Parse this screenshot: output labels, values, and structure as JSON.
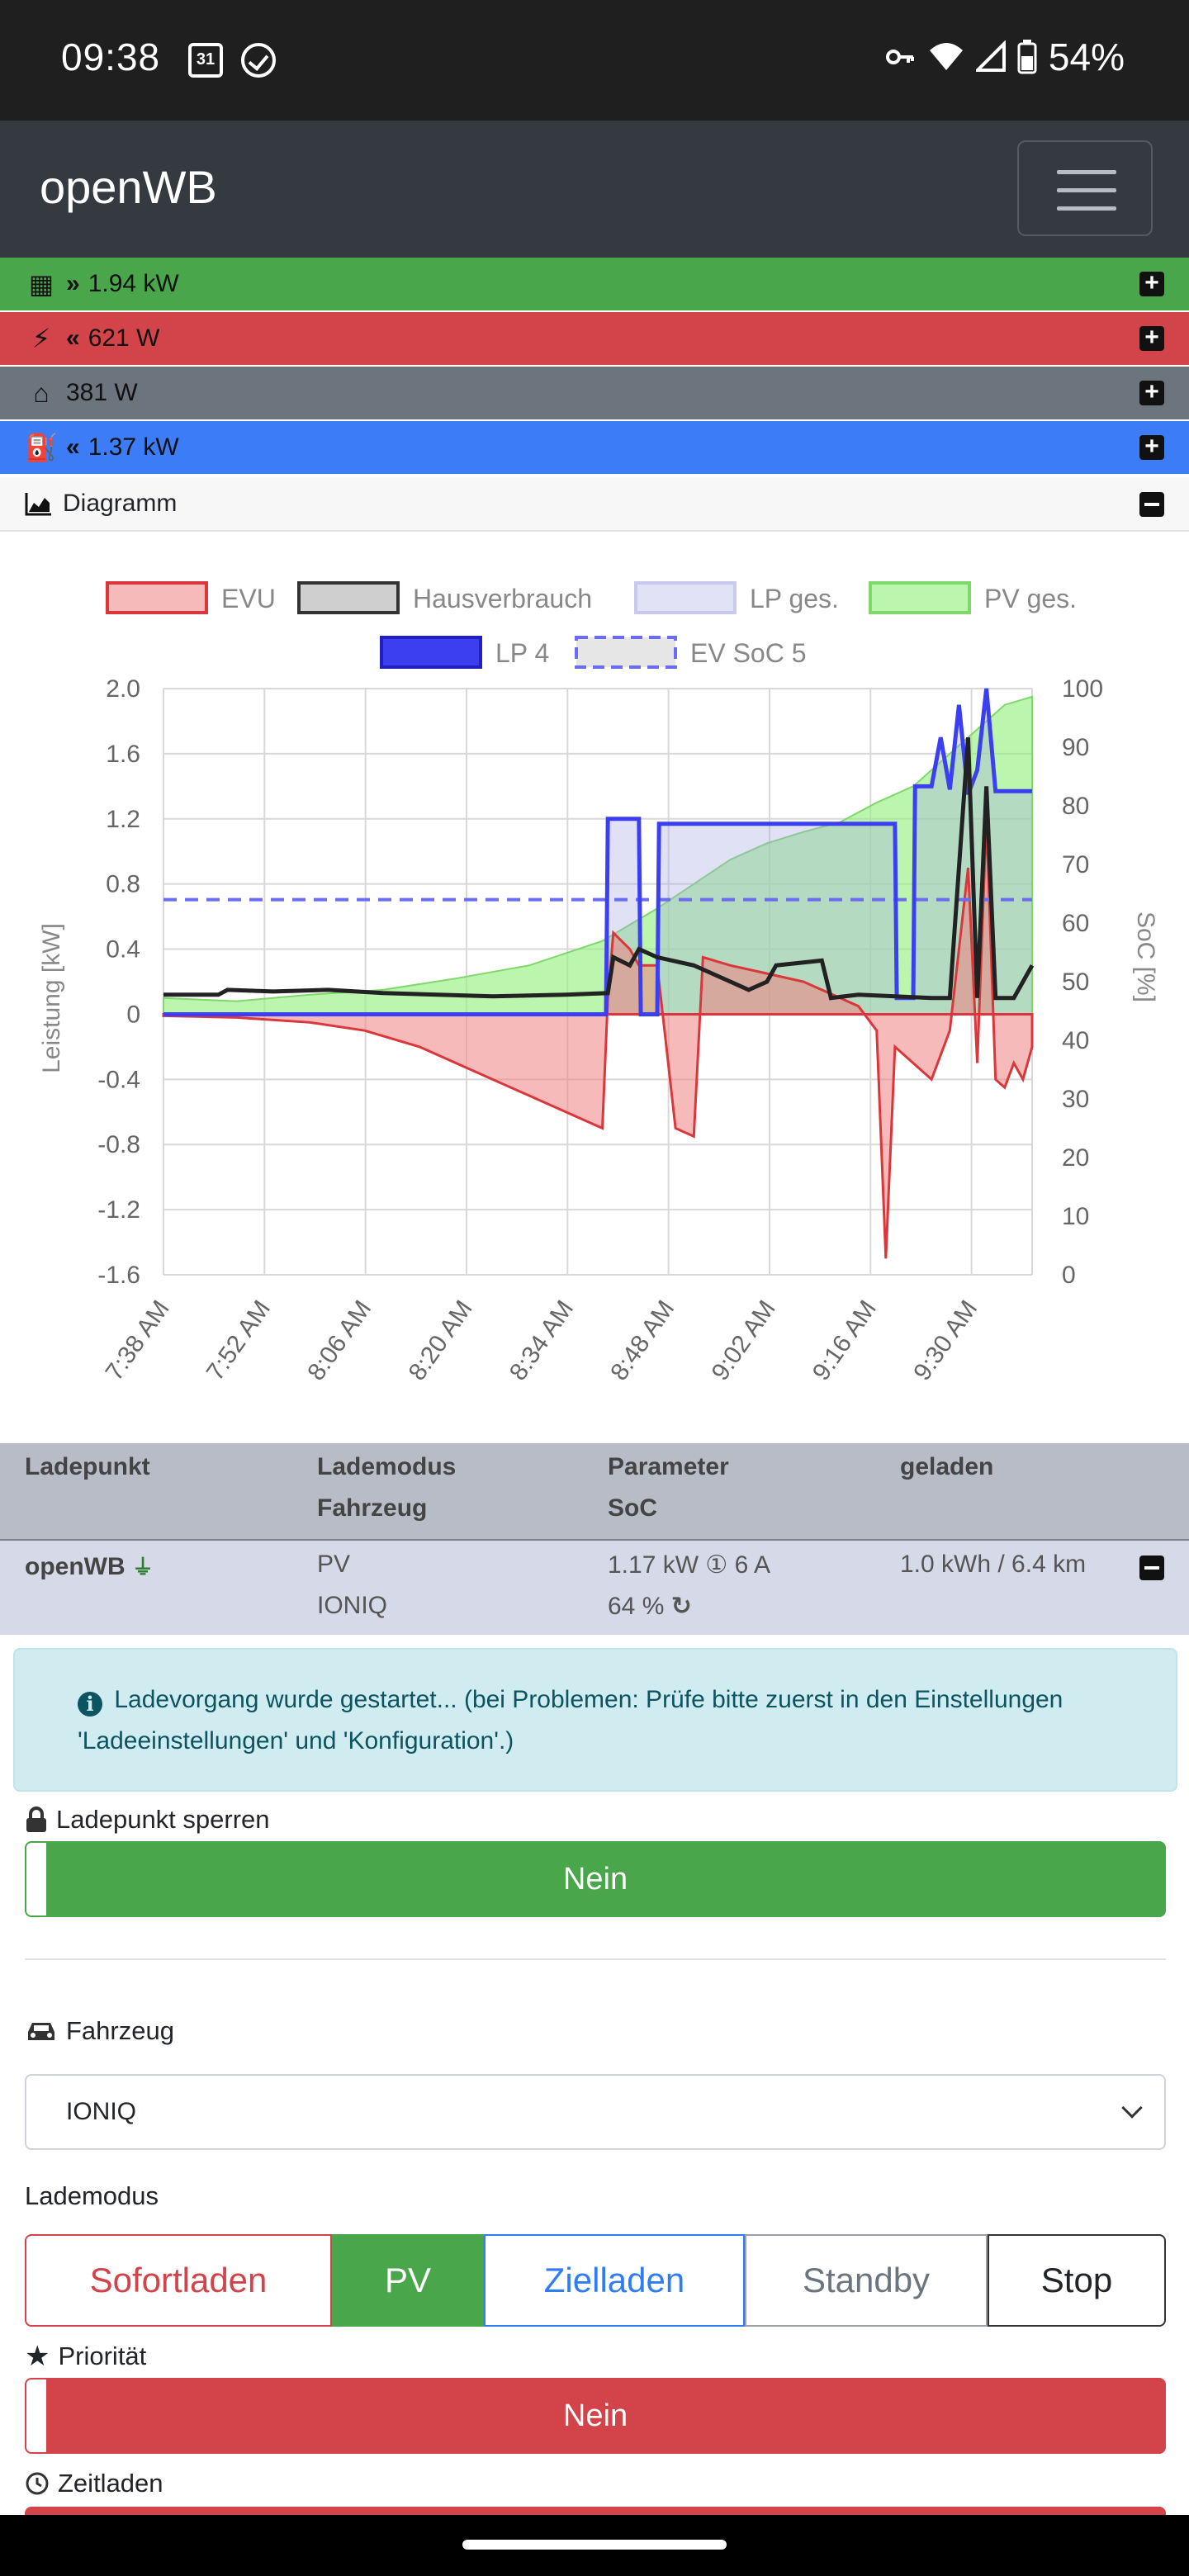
{
  "status_bar": {
    "time": "09:38",
    "calendar_day": "31",
    "battery": "54%"
  },
  "navbar": {
    "brand": "openWB"
  },
  "summary": {
    "pv": {
      "value": "1.94 kW",
      "color": "#4aa64a"
    },
    "grid": {
      "value": "621 W",
      "color": "#d2434a"
    },
    "house": {
      "value": "381 W",
      "color": "#6c757d"
    },
    "charge": {
      "value": "1.37 kW",
      "color": "#3c7cf6"
    }
  },
  "diagram": {
    "title": "Diagramm"
  },
  "chart_data": {
    "type": "line",
    "legend": [
      "EVU",
      "Hausverbrauch",
      "LP ges.",
      "PV ges.",
      "LP 4",
      "EV SoC 5"
    ],
    "legend_placement": "top",
    "ylabel_left": "Leistung [kW]",
    "ylabel_right": "SoC [%]",
    "y_left_range": [
      -1.6,
      2.0
    ],
    "y_right_range": [
      0,
      100
    ],
    "y_left_ticks": [
      "2.0",
      "1.6",
      "1.2",
      "0.8",
      "0.4",
      "0",
      "-0.4",
      "-0.8",
      "-1.2",
      "-1.6"
    ],
    "y_right_ticks": [
      "100",
      "90",
      "80",
      "70",
      "60",
      "50",
      "40",
      "30",
      "20",
      "10",
      "0"
    ],
    "x_ticks": [
      "7:38 AM",
      "7:52 AM",
      "8:06 AM",
      "8:20 AM",
      "8:34 AM",
      "8:48 AM",
      "9:02 AM",
      "9:16 AM",
      "9:30 AM"
    ],
    "grid": true,
    "series": [
      {
        "name": "PV ges.",
        "color": "#9ef48a",
        "points": [
          [
            0,
            0.1
          ],
          [
            4,
            0.08
          ],
          [
            8,
            0.12
          ],
          [
            12,
            0.15
          ],
          [
            16,
            0.22
          ],
          [
            20,
            0.3
          ],
          [
            24,
            0.45
          ],
          [
            27,
            0.65
          ],
          [
            29,
            0.8
          ],
          [
            31,
            0.95
          ],
          [
            33,
            1.05
          ],
          [
            35,
            1.12
          ],
          [
            37,
            1.18
          ],
          [
            39,
            1.3
          ],
          [
            41,
            1.4
          ],
          [
            42,
            1.5
          ],
          [
            43,
            1.6
          ],
          [
            44,
            1.7
          ],
          [
            45,
            1.8
          ],
          [
            46,
            1.9
          ],
          [
            47.5,
            1.95
          ]
        ]
      },
      {
        "name": "EVU",
        "color": "#d9373b",
        "points": [
          [
            0,
            -0.01
          ],
          [
            4,
            -0.02
          ],
          [
            8,
            -0.05
          ],
          [
            11,
            -0.1
          ],
          [
            14,
            -0.2
          ],
          [
            17,
            -0.35
          ],
          [
            20,
            -0.5
          ],
          [
            22,
            -0.6
          ],
          [
            24,
            -0.7
          ],
          [
            24.3,
            0.1
          ],
          [
            24.6,
            0.5
          ],
          [
            25.5,
            0.4
          ],
          [
            26,
            0.3
          ],
          [
            27,
            0.3
          ],
          [
            28,
            -0.7
          ],
          [
            29,
            -0.75
          ],
          [
            29.5,
            0.35
          ],
          [
            31,
            0.3
          ],
          [
            33,
            0.25
          ],
          [
            35,
            0.2
          ],
          [
            36,
            0.15
          ],
          [
            37,
            0.1
          ],
          [
            38,
            0.05
          ],
          [
            39,
            -0.1
          ],
          [
            39.5,
            -1.5
          ],
          [
            40,
            -0.2
          ],
          [
            41,
            -0.3
          ],
          [
            42,
            -0.4
          ],
          [
            43,
            -0.1
          ],
          [
            44,
            0.9
          ],
          [
            44.5,
            -0.3
          ],
          [
            45,
            1.2
          ],
          [
            45.5,
            -0.4
          ],
          [
            46,
            -0.45
          ],
          [
            46.5,
            -0.3
          ],
          [
            47,
            -0.4
          ],
          [
            47.5,
            -0.2
          ]
        ]
      },
      {
        "name": "Hausverbrauch",
        "color": "#222222",
        "points": [
          [
            0,
            0.12
          ],
          [
            3,
            0.12
          ],
          [
            3.5,
            0.15
          ],
          [
            6,
            0.14
          ],
          [
            9,
            0.15
          ],
          [
            12,
            0.13
          ],
          [
            15,
            0.12
          ],
          [
            18,
            0.11
          ],
          [
            22,
            0.12
          ],
          [
            24.3,
            0.13
          ],
          [
            24.6,
            0.35
          ],
          [
            25.5,
            0.3
          ],
          [
            26,
            0.4
          ],
          [
            27,
            0.35
          ],
          [
            29,
            0.3
          ],
          [
            30,
            0.25
          ],
          [
            31,
            0.2
          ],
          [
            32,
            0.15
          ],
          [
            33,
            0.2
          ],
          [
            33.5,
            0.3
          ],
          [
            36,
            0.33
          ],
          [
            36.5,
            0.1
          ],
          [
            38,
            0.12
          ],
          [
            42,
            0.1
          ],
          [
            43,
            0.1
          ],
          [
            44,
            1.7
          ],
          [
            44.5,
            0.1
          ],
          [
            45,
            1.4
          ],
          [
            45.5,
            0.1
          ],
          [
            46.5,
            0.1
          ],
          [
            47,
            0.2
          ],
          [
            47.5,
            0.3
          ]
        ]
      },
      {
        "name": "LP 4",
        "color": "#3b3ff0",
        "points": [
          [
            0,
            0
          ],
          [
            24.2,
            0
          ],
          [
            24.3,
            1.2
          ],
          [
            26,
            1.2
          ],
          [
            26.1,
            0
          ],
          [
            27,
            0
          ],
          [
            27.1,
            1.17
          ],
          [
            40,
            1.17
          ],
          [
            40.1,
            0.1
          ],
          [
            41,
            0.1
          ],
          [
            41.1,
            1.4
          ],
          [
            42,
            1.4
          ],
          [
            42.5,
            1.7
          ],
          [
            43,
            1.38
          ],
          [
            43.5,
            1.9
          ],
          [
            44,
            1.35
          ],
          [
            44.5,
            1.5
          ],
          [
            45,
            2.0
          ],
          [
            45.5,
            1.37
          ],
          [
            47.5,
            1.37
          ]
        ]
      },
      {
        "name": "EV SoC 5",
        "color": "#6b6cf0",
        "dashed": true,
        "points": [
          [
            0,
            64
          ],
          [
            47.5,
            64
          ]
        ]
      }
    ]
  },
  "table": {
    "headers": {
      "ladepunkt": "Ladepunkt",
      "lademodus": "Lademodus",
      "fahrzeug": "Fahrzeug",
      "parameter": "Parameter",
      "soc": "SoC",
      "geladen": "geladen"
    },
    "row": {
      "name": "openWB",
      "mode": "PV",
      "vehicle": "IONIQ",
      "param": "1.17 kW ① 6 A",
      "soc": "64 %",
      "charged": "1.0 kWh / 6.4 km"
    }
  },
  "alert": {
    "text": "Ladevorgang wurde gestartet... (bei Problemen: Prüfe bitte zuerst in den Einstellungen 'Ladeeinstellungen' und 'Konfiguration'.)"
  },
  "lock": {
    "label": "Ladepunkt sperren",
    "value": "Nein",
    "color": "#4aa64a"
  },
  "vehicle": {
    "label": "Fahrzeug",
    "selected": "IONIQ"
  },
  "mode": {
    "label": "Lademodus",
    "buttons": [
      "Sofortladen",
      "PV",
      "Zielladen",
      "Standby",
      "Stop"
    ]
  },
  "priority": {
    "label": "Priorität",
    "value": "Nein",
    "color": "#d2434a"
  },
  "timecharge": {
    "label": "Zeitladen"
  }
}
